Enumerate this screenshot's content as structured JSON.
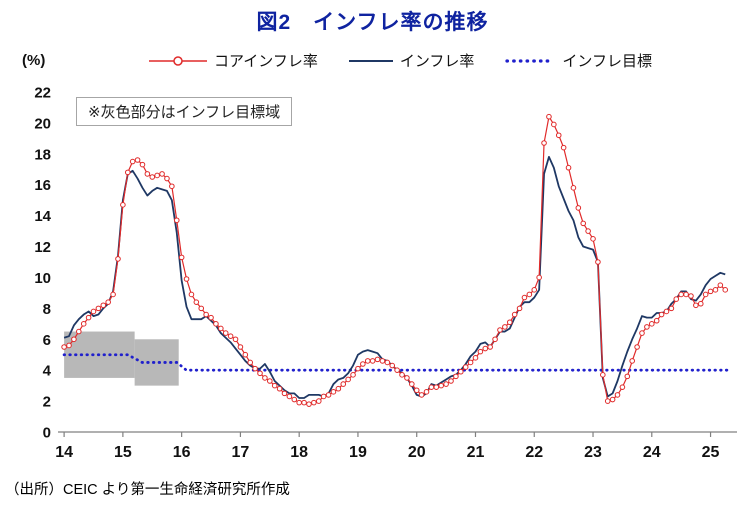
{
  "title": "図2　インフレ率の推移",
  "unit_label": "(%)",
  "annotation": "※灰色部分はインフレ目標域",
  "source": "（出所）CEIC より第一生命経済研究所作成",
  "colors": {
    "title": "#0f23a0",
    "core": "#e02a2a",
    "headline": "#1f3864",
    "target": "#2020cc",
    "band": "#b8b8b8",
    "axis": "#808080",
    "tick_text": "#111111"
  },
  "legend": [
    {
      "label": "コアインフレ率",
      "color": "#e02a2a",
      "style": "line-circle-marker"
    },
    {
      "label": "インフレ率",
      "color": "#1f3864",
      "style": "solid-line"
    },
    {
      "label": "インフレ目標",
      "color": "#2020cc",
      "style": "dotted-line"
    }
  ],
  "chart_data": {
    "type": "line",
    "title": "図2　インフレ率の推移",
    "ylabel": "(%)",
    "ylim": [
      0,
      22
    ],
    "ytick_step": 2,
    "xlim": [
      2013.93,
      2025.45
    ],
    "xticks": [
      2014,
      2015,
      2016,
      2017,
      2018,
      2019,
      2020,
      2021,
      2022,
      2023,
      2024,
      2025
    ],
    "xtick_labels": [
      "14",
      "15",
      "16",
      "17",
      "18",
      "19",
      "20",
      "21",
      "22",
      "23",
      "24",
      "25"
    ],
    "x_start": 2014,
    "x_step_months": 1,
    "grid": false,
    "legend_position": "top",
    "series": [
      {
        "name": "コアインフレ率",
        "color": "#e02a2a",
        "marker": "open-circle",
        "width": 1.2,
        "values": [
          5.5,
          5.6,
          6.0,
          6.5,
          7.0,
          7.4,
          7.8,
          8.0,
          8.2,
          8.4,
          8.9,
          11.2,
          14.7,
          16.8,
          17.5,
          17.6,
          17.3,
          16.7,
          16.5,
          16.6,
          16.7,
          16.4,
          15.9,
          13.7,
          11.3,
          9.9,
          8.9,
          8.4,
          8.0,
          7.6,
          7.4,
          7.0,
          6.7,
          6.4,
          6.2,
          6.0,
          5.5,
          5.0,
          4.5,
          4.1,
          3.8,
          3.5,
          3.3,
          3.0,
          2.8,
          2.5,
          2.3,
          2.1,
          1.9,
          1.9,
          1.8,
          1.9,
          2.0,
          2.3,
          2.4,
          2.6,
          2.8,
          3.1,
          3.4,
          3.7,
          4.1,
          4.4,
          4.6,
          4.6,
          4.7,
          4.6,
          4.5,
          4.3,
          4.0,
          3.7,
          3.5,
          3.1,
          2.7,
          2.4,
          2.6,
          2.9,
          2.9,
          3.0,
          3.1,
          3.3,
          3.6,
          3.9,
          4.2,
          4.5,
          4.8,
          5.2,
          5.4,
          5.5,
          6.0,
          6.6,
          6.8,
          7.1,
          7.6,
          8.0,
          8.7,
          8.9,
          9.2,
          10.0,
          18.7,
          20.4,
          19.9,
          19.2,
          18.4,
          17.1,
          15.8,
          14.5,
          13.5,
          13.0,
          12.5,
          11.0,
          3.7,
          2.0,
          2.1,
          2.4,
          2.9,
          3.6,
          4.6,
          5.5,
          6.4,
          6.8,
          7.0,
          7.2,
          7.6,
          7.8,
          8.0,
          8.6,
          8.9,
          8.9,
          8.8,
          8.2,
          8.3,
          8.9,
          9.1,
          9.2,
          9.5,
          9.2
        ]
      },
      {
        "name": "インフレ率",
        "color": "#1f3864",
        "marker": "none",
        "width": 1.8,
        "values": [
          6.1,
          6.2,
          6.9,
          7.3,
          7.6,
          7.8,
          7.5,
          7.6,
          8.0,
          8.3,
          9.1,
          11.4,
          15.0,
          16.7,
          16.9,
          16.4,
          15.8,
          15.3,
          15.6,
          15.8,
          15.7,
          15.6,
          15.0,
          12.9,
          9.8,
          8.1,
          7.3,
          7.3,
          7.3,
          7.5,
          7.2,
          6.9,
          6.4,
          6.1,
          5.8,
          5.4,
          5.0,
          4.6,
          4.3,
          4.1,
          4.1,
          4.4,
          3.9,
          3.3,
          3.0,
          2.7,
          2.5,
          2.5,
          2.2,
          2.2,
          2.4,
          2.4,
          2.4,
          2.3,
          2.5,
          3.1,
          3.4,
          3.5,
          3.8,
          4.3,
          5.0,
          5.2,
          5.3,
          5.2,
          5.1,
          4.7,
          4.6,
          4.3,
          4.0,
          3.8,
          3.5,
          3.0,
          2.4,
          2.3,
          2.5,
          3.1,
          3.0,
          3.2,
          3.4,
          3.6,
          3.7,
          4.0,
          4.4,
          4.9,
          5.2,
          5.7,
          5.8,
          5.5,
          6.0,
          6.5,
          6.5,
          6.7,
          7.4,
          8.1,
          8.4,
          8.4,
          8.7,
          9.2,
          16.7,
          17.8,
          17.1,
          15.9,
          15.1,
          14.3,
          13.7,
          12.6,
          12.0,
          11.9,
          11.8,
          11.0,
          3.5,
          2.3,
          2.5,
          3.3,
          4.3,
          5.2,
          6.0,
          6.7,
          7.5,
          7.4,
          7.4,
          7.7,
          7.7,
          7.8,
          8.3,
          8.6,
          9.1,
          9.1,
          8.6,
          8.5,
          8.9,
          9.5,
          9.9,
          10.1,
          10.3,
          10.2
        ]
      }
    ],
    "target": {
      "name": "インフレ目標",
      "color": "#2020cc",
      "points": [
        [
          2014.0,
          5.0
        ],
        [
          2015.08,
          5.0
        ],
        [
          2015.33,
          4.5
        ],
        [
          2015.92,
          4.5
        ],
        [
          2016.08,
          4.0
        ],
        [
          2025.33,
          4.0
        ]
      ]
    },
    "target_band": [
      {
        "x0": 2014.0,
        "x1": 2015.2,
        "low": 3.5,
        "high": 6.5
      },
      {
        "x0": 2015.2,
        "x1": 2015.95,
        "low": 3.0,
        "high": 6.0
      }
    ]
  }
}
